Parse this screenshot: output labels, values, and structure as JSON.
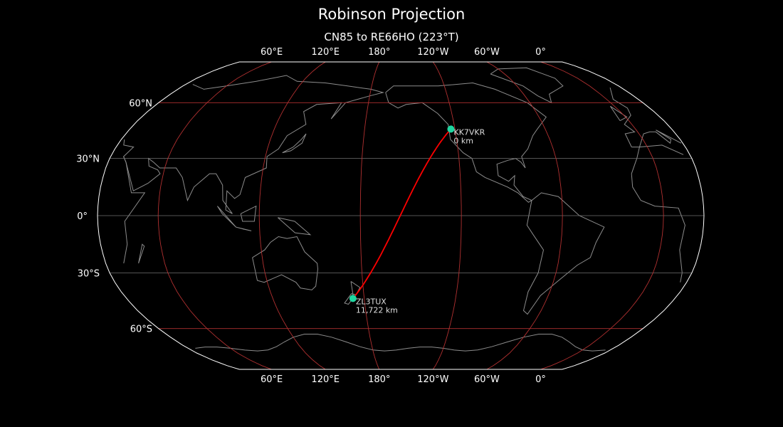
{
  "title": "Robinson Projection",
  "subtitle": "CN85 to RE66HO (223°T)",
  "map": {
    "projection": "robinson",
    "central_longitude": -156,
    "colors": {
      "background": "#000000",
      "coastline": "#8c8c8c",
      "graticule": "#b03030",
      "gridline": "#707070",
      "outline": "#ffffff",
      "path": "#ff0000",
      "marker": "#1fd6a0"
    },
    "lon_ticks": [
      {
        "lon": 60,
        "label": "60°E"
      },
      {
        "lon": 120,
        "label": "120°E"
      },
      {
        "lon": 180,
        "label": "180°"
      },
      {
        "lon": -120,
        "label": "120°W"
      },
      {
        "lon": -60,
        "label": "60°W"
      },
      {
        "lon": 0,
        "label": "0°"
      }
    ],
    "lat_ticks": [
      {
        "lat": 60,
        "label": "60°N"
      },
      {
        "lat": 30,
        "label": "30°N"
      },
      {
        "lat": 0,
        "label": "0°"
      },
      {
        "lat": -30,
        "label": "30°S"
      },
      {
        "lat": -60,
        "label": "60°S"
      }
    ],
    "markers": [
      {
        "name": "KK7VKR",
        "distance": "0 km",
        "lat": 45.5,
        "lon": -122.7
      },
      {
        "name": "ZL3TUX",
        "distance": "11,722 km",
        "lat": -43.5,
        "lon": 172.6
      }
    ]
  }
}
